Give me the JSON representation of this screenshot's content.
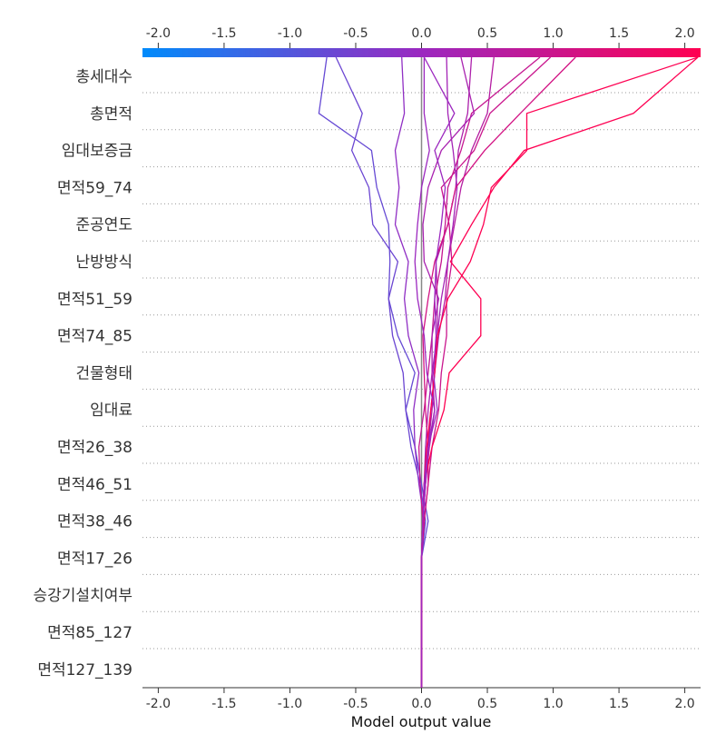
{
  "chart_data": {
    "type": "line",
    "title": "",
    "xlabel": "Model output value",
    "ylabel": "",
    "xlim": [
      -2.12,
      2.12
    ],
    "x_ticks": [
      -2.0,
      -1.5,
      -1.0,
      -0.5,
      0.0,
      0.5,
      1.0,
      1.5,
      2.0
    ],
    "x_tick_labels": [
      "-2.0",
      "-1.5",
      "-1.0",
      "-0.5",
      "0.0",
      "0.5",
      "1.0",
      "1.5",
      "2.0"
    ],
    "base_value": 0.0,
    "colorbar": {
      "min_color": "#008bfb",
      "mid_color": "#9b28c0",
      "max_color": "#ff0051"
    },
    "features": [
      "총세대수",
      "총면적",
      "임대보증금",
      "면적59_74",
      "준공연도",
      "난방방식",
      "면적51_59",
      "면적74_85",
      "건물형태",
      "임대료",
      "면적26_38",
      "면적46_51",
      "면적38_46",
      "면적17_26",
      "승강기설치여부",
      "면적85_127",
      "면적127_139"
    ],
    "series": [
      {
        "values": [
          0,
          0,
          0,
          0,
          0,
          0.05,
          0.0,
          -0.05,
          -0.12,
          -0.05,
          -0.18,
          -0.25,
          -0.24,
          -0.25,
          -0.34,
          -0.38,
          -0.78,
          -0.72
        ]
      },
      {
        "values": [
          0,
          0,
          0,
          0,
          0,
          0.03,
          -0.01,
          -0.08,
          -0.12,
          -0.14,
          -0.22,
          -0.25,
          -0.18,
          -0.37,
          -0.4,
          -0.53,
          -0.45,
          -0.65
        ]
      },
      {
        "values": [
          0,
          0,
          0,
          0,
          0,
          0.02,
          -0.02,
          -0.05,
          -0.06,
          -0.02,
          -0.1,
          -0.13,
          -0.1,
          -0.2,
          -0.17,
          -0.2,
          -0.13,
          -0.15
        ]
      },
      {
        "values": [
          0,
          0,
          0,
          0,
          0,
          0.01,
          0.03,
          0.05,
          0.08,
          0.1,
          0.13,
          0.18,
          0.2,
          0.25,
          0.3,
          0.38,
          0.5,
          0.55
        ]
      },
      {
        "values": [
          0,
          0,
          0,
          0,
          0,
          0.01,
          0.03,
          0.06,
          0.1,
          0.08,
          0.12,
          0.12,
          0.11,
          0.2,
          0.26,
          0.28,
          0.35,
          0.38
        ]
      },
      {
        "values": [
          0,
          0,
          0,
          0,
          0,
          0.01,
          -0.01,
          -0.02,
          0.02,
          0.05,
          0.08,
          0.1,
          0.15,
          0.18,
          0.2,
          0.3,
          0.38,
          0.9
        ]
      },
      {
        "values": [
          0,
          0,
          0,
          0,
          0,
          0.02,
          0.05,
          0.08,
          0.13,
          0.15,
          0.19,
          0.19,
          0.23,
          0.21,
          0.15,
          0.4,
          0.52,
          0.98
        ]
      },
      {
        "values": [
          0,
          0,
          0,
          0,
          0,
          0.01,
          0.02,
          0.05,
          0.07,
          0.1,
          0.12,
          0.15,
          0.2,
          0.24,
          0.27,
          0.24,
          0.2,
          0.19
        ]
      },
      {
        "values": [
          0,
          0,
          0,
          0,
          0,
          0.01,
          0.02,
          0.03,
          0.05,
          0.08,
          0.08,
          0.13,
          0.02,
          0.01,
          0.05,
          0.15,
          0.4,
          0.3
        ]
      },
      {
        "values": [
          0,
          0,
          0,
          0,
          0,
          0.02,
          0.05,
          0.05,
          0.03,
          0.02,
          0.01,
          0.05,
          0.1,
          0.2,
          0.26,
          0.48,
          0.75,
          1.17
        ]
      },
      {
        "values": [
          0,
          0,
          0,
          0,
          0,
          0.01,
          0.02,
          0.08,
          0.17,
          0.21,
          0.45,
          0.45,
          0.22,
          0.38,
          0.55,
          0.78,
          1.61,
          2.1
        ]
      },
      {
        "values": [
          0,
          0,
          0,
          0,
          0,
          0.01,
          0.02,
          0.04,
          0.07,
          0.1,
          0.12,
          0.2,
          0.37,
          0.47,
          0.53,
          0.8,
          0.8,
          2.1
        ]
      },
      {
        "values": [
          0,
          0,
          0,
          0,
          0,
          0.01,
          0.02,
          0.05,
          0.12,
          0.09,
          0.11,
          0.1,
          0.11,
          0.15,
          0.18,
          0.1,
          0.25,
          0.02
        ]
      },
      {
        "values": [
          0,
          0,
          0,
          0,
          0,
          0.01,
          0.03,
          0.05,
          0.1,
          0.04,
          0.02,
          -0.03,
          -0.05,
          -0.03,
          0.0,
          0.06,
          0.02,
          0.02
        ]
      }
    ]
  }
}
